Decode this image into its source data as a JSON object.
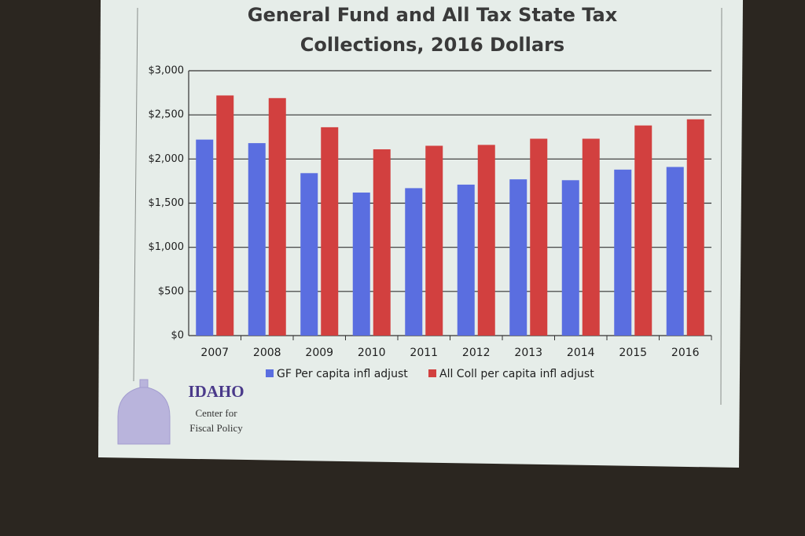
{
  "chart_data": {
    "type": "bar",
    "title": "General Fund and All Tax State Tax Collections, 2016 Dollars",
    "categories": [
      "2007",
      "2008",
      "2009",
      "2010",
      "2011",
      "2012",
      "2013",
      "2014",
      "2015",
      "2016"
    ],
    "series": [
      {
        "name": "GF Per capita infl adjust",
        "color": "#5a6ee0",
        "values": [
          2220,
          2180,
          1840,
          1620,
          1670,
          1710,
          1770,
          1760,
          1880,
          1910
        ]
      },
      {
        "name": "All Coll per capita infl adjust",
        "color": "#d2403f",
        "values": [
          2720,
          2690,
          2360,
          2110,
          2150,
          2160,
          2230,
          2230,
          2380,
          2450
        ]
      }
    ],
    "ylim": [
      0,
      3000
    ],
    "yticks": [
      {
        "value": 0,
        "label": "$0"
      },
      {
        "value": 500,
        "label": "$500"
      },
      {
        "value": 1000,
        "label": "$1,000"
      },
      {
        "value": 1500,
        "label": "$1,500"
      },
      {
        "value": 2000,
        "label": "$2,000"
      },
      {
        "value": 2500,
        "label": "$2,500"
      },
      {
        "value": 3000,
        "label": "$3,000"
      }
    ],
    "grid": true,
    "legend": "bottom"
  },
  "logo": {
    "name": "IDAHO",
    "lines": [
      "Center for",
      "Fiscal Policy"
    ]
  }
}
